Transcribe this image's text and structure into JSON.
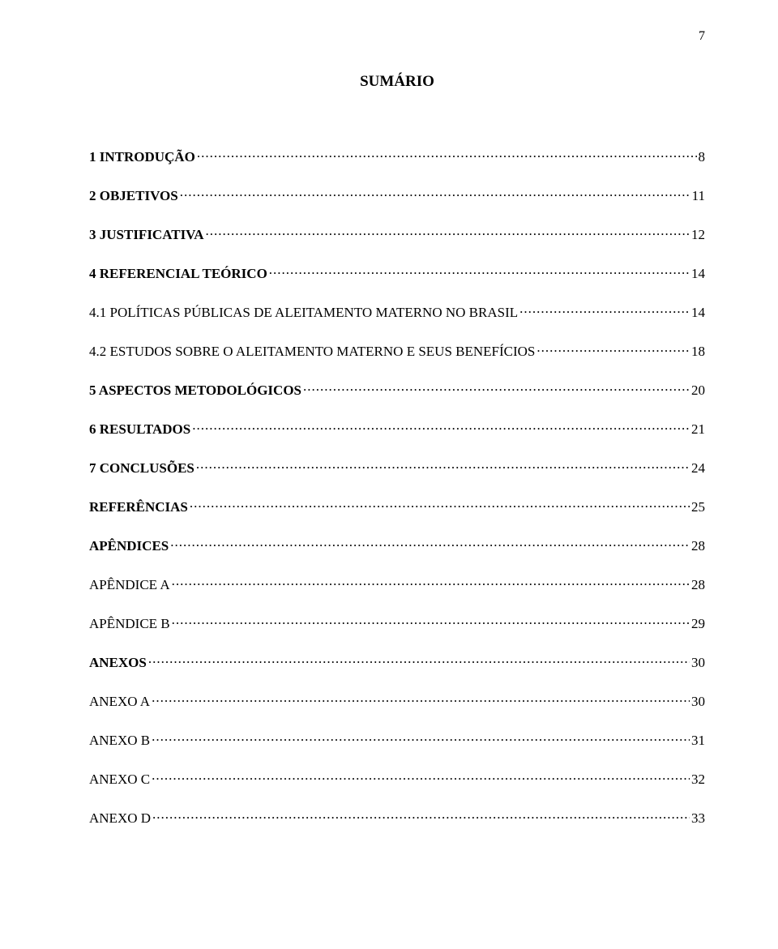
{
  "page_number": "7",
  "title": "SUMÁRIO",
  "entries": [
    {
      "label": "1 INTRODUÇÃO",
      "page": "8",
      "bold": true
    },
    {
      "label": "2 OBJETIVOS",
      "page": "11",
      "bold": true
    },
    {
      "label": "3 JUSTIFICATIVA",
      "page": "12",
      "bold": true
    },
    {
      "label": "4 REFERENCIAL TEÓRICO",
      "page": "14",
      "bold": true
    },
    {
      "label": "4.1 POLÍTICAS PÚBLICAS DE ALEITAMENTO MATERNO NO BRASIL",
      "page": "14",
      "bold": false
    },
    {
      "label": "4.2 ESTUDOS SOBRE O ALEITAMENTO MATERNO E SEUS BENEFÍCIOS",
      "page": "18",
      "bold": false
    },
    {
      "label": "5 ASPECTOS METODOLÓGICOS",
      "page": "20",
      "bold": true
    },
    {
      "label": "6 RESULTADOS",
      "page": "21",
      "bold": true
    },
    {
      "label": "7 CONCLUSÕES",
      "page": "24",
      "bold": true
    },
    {
      "label": "REFERÊNCIAS",
      "page": "25",
      "bold": true
    },
    {
      "label": "APÊNDICES",
      "page": "28",
      "bold": true
    },
    {
      "label": "APÊNDICE A",
      "page": "28",
      "bold": false
    },
    {
      "label": "APÊNDICE B",
      "page": "29",
      "bold": false
    },
    {
      "label": "ANEXOS",
      "page": "30",
      "bold": true
    },
    {
      "label": "ANEXO A",
      "page": "30",
      "bold": false
    },
    {
      "label": "ANEXO B",
      "page": "31",
      "bold": false
    },
    {
      "label": "ANEXO C",
      "page": "32",
      "bold": false
    },
    {
      "label": "ANEXO D",
      "page": "33",
      "bold": false
    }
  ]
}
